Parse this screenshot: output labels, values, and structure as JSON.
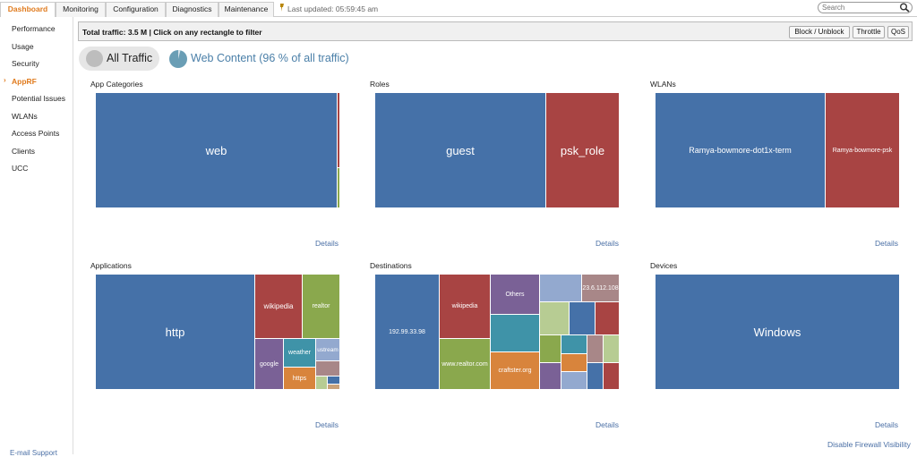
{
  "tabs": [
    {
      "label": "Dashboard",
      "active": true
    },
    {
      "label": "Monitoring",
      "active": false
    },
    {
      "label": "Configuration",
      "active": false
    },
    {
      "label": "Diagnostics",
      "active": false
    },
    {
      "label": "Maintenance",
      "active": false
    }
  ],
  "last_updated": "Last updated: 05:59:45 am",
  "search": {
    "placeholder": "Search"
  },
  "sidebar": {
    "items": [
      {
        "label": "Performance",
        "active": false
      },
      {
        "label": "Usage",
        "active": false
      },
      {
        "label": "Security",
        "active": false
      },
      {
        "label": "AppRF",
        "active": true
      },
      {
        "label": "Potential Issues",
        "active": false
      },
      {
        "label": "WLANs",
        "active": false
      },
      {
        "label": "Access Points",
        "active": false
      },
      {
        "label": "Clients",
        "active": false
      },
      {
        "label": "UCC",
        "active": false
      }
    ],
    "email_support": "E-mail Support"
  },
  "filterbar": {
    "text": "Total traffic: 3.5 M | Click on any rectangle to filter",
    "block_label": "Block / Unblock",
    "throttle_label": "Throttle",
    "qos_label": "QoS"
  },
  "filters": {
    "all_traffic": "All Traffic",
    "web_content": "Web Content (96 % of all traffic)"
  },
  "panels": {
    "app_categories": {
      "title": "App Categories",
      "details": "Details",
      "labels": {
        "web": "web"
      }
    },
    "roles": {
      "title": "Roles",
      "details": "Details",
      "labels": {
        "guest": "guest",
        "psk_role": "psk_role"
      }
    },
    "wlans": {
      "title": "WLANs",
      "details": "Details",
      "labels": {
        "dot1x": "Ramya-bowmore-dot1x-term",
        "psk": "Ramya-bowmore-psk"
      }
    },
    "applications": {
      "title": "Applications",
      "details": "Details",
      "labels": {
        "http": "http",
        "wikipedia": "wikipedia",
        "realtor": "realtor",
        "google": "google",
        "weather": "weather",
        "ustream": "ustream",
        "https": "https"
      }
    },
    "destinations": {
      "title": "Destinations",
      "details": "Details",
      "labels": {
        "ip1": "192.99.33.98",
        "wikipedia": "wikipedia",
        "others": "Others",
        "ip2": "23.6.112.108",
        "realtor": "www.realtor.com",
        "craftster": "craftster.org"
      }
    },
    "devices": {
      "title": "Devices",
      "details": "Details",
      "labels": {
        "windows": "Windows"
      }
    }
  },
  "firewall_link": "Disable Firewall Visibility",
  "colors": {
    "blue": "#4571a8",
    "red": "#a84443",
    "green": "#8aa84d",
    "purple": "#7a6196",
    "teal": "#3f93a8",
    "orange": "#d8843c",
    "lightblue": "#93a9cf",
    "lightgreen": "#b7cc93",
    "mauve": "#a88788",
    "accent": "#e07b1e"
  }
}
